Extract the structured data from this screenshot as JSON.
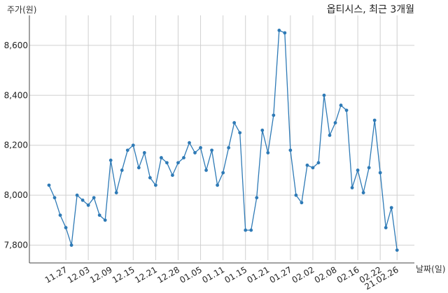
{
  "chart_data": {
    "type": "line",
    "title": "옵티시스, 최근 3개월",
    "xlabel": "날짜(일)",
    "ylabel": "주가(원)",
    "ylim": [
      7740,
      8720
    ],
    "yticks": [
      7800,
      8000,
      8200,
      8400,
      8600
    ],
    "ytick_labels": [
      "7,800",
      "8,000",
      "8,200",
      "8,400",
      "8,600"
    ],
    "xtick_labels": [
      "11.27",
      "12.03",
      "12.09",
      "12.15",
      "12.21",
      "12.28",
      "01.05",
      "01.11",
      "01.15",
      "01.21",
      "01.27",
      "02.02",
      "02.08",
      "02.16",
      "02.22",
      "21.02.26"
    ],
    "xtick_index": [
      3,
      7,
      11,
      15,
      19,
      23,
      27,
      31,
      35,
      39,
      43,
      47,
      51,
      55,
      59,
      62
    ],
    "grid": true,
    "series": [
      {
        "name": "",
        "color": "#2e7ab6",
        "values": [
          8040,
          7990,
          7920,
          7870,
          7800,
          8000,
          7980,
          7960,
          7990,
          7920,
          7900,
          8140,
          8010,
          8100,
          8180,
          8200,
          8110,
          8170,
          8070,
          8040,
          8150,
          8130,
          8080,
          8130,
          8150,
          8210,
          8170,
          8190,
          8100,
          8180,
          8040,
          8090,
          8190,
          8290,
          8250,
          7860,
          7860,
          7990,
          8260,
          8170,
          8320,
          8660,
          8650,
          8180,
          8000,
          7970,
          8120,
          8110,
          8130,
          8400,
          8240,
          8290,
          8360,
          8340,
          8030,
          8100,
          8010,
          8110,
          8300,
          8090,
          7870,
          7950,
          7780
        ]
      }
    ]
  }
}
